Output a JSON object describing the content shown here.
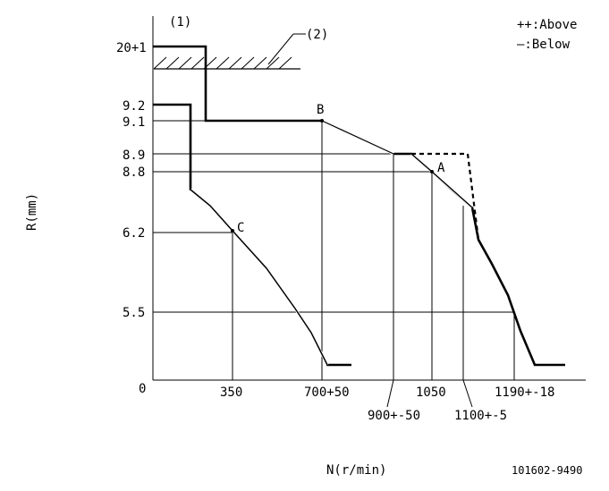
{
  "diagram": {
    "axis_label_y": "R(mm)",
    "axis_label_x": "N(r/min)",
    "ref_code": "101602-9490",
    "legend": {
      "above": "++:Above",
      "below": "—:Below"
    },
    "callout_1": "(1)",
    "callout_2": "(2)",
    "y_ticks": [
      "20+1",
      "9.2",
      "9.1",
      "8.9",
      "8.8",
      "6.2",
      "5.5",
      "0"
    ],
    "x_ticks": [
      "350",
      "700+50",
      "900+-50",
      "1050",
      "1100+-5",
      "1190+-18"
    ],
    "points": [
      "A",
      "B",
      "C"
    ]
  }
}
